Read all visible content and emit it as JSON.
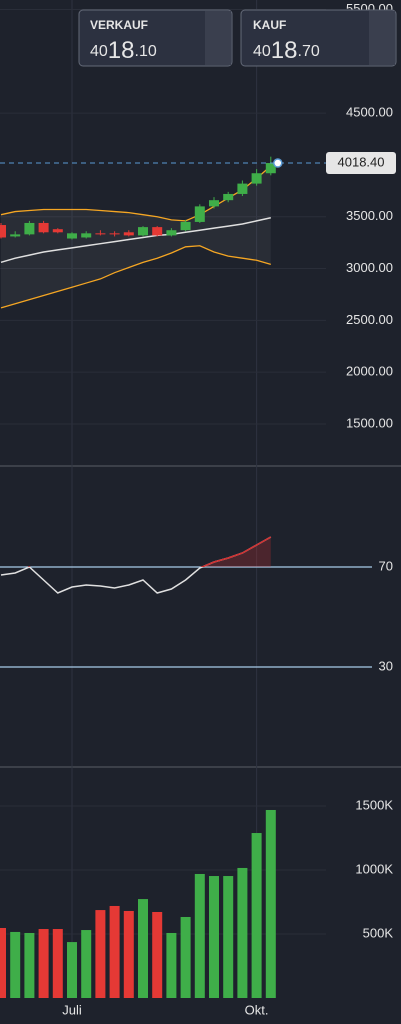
{
  "quotes": [
    {
      "label": "VERKAUF",
      "prefix": "40",
      "main": "18",
      "suffix": ".10"
    },
    {
      "label": "KAUF",
      "prefix": "40",
      "main": "18",
      "suffix": ".70"
    }
  ],
  "chart_data": [
    {
      "type": "candlestick",
      "categories": [
        null,
        null,
        null,
        null,
        null,
        "Juli",
        null,
        null,
        null,
        null,
        null,
        null,
        null,
        null,
        null,
        null,
        null,
        null,
        "Okt.",
        null
      ],
      "open": [
        3420,
        3310,
        3330,
        3440,
        3380,
        3290,
        3300,
        3340,
        3340,
        3350,
        3320,
        3400,
        3320,
        3370,
        3450,
        3600,
        3660,
        3720,
        3820,
        3920
      ],
      "high": [
        3440,
        3360,
        3460,
        3460,
        3390,
        3350,
        3360,
        3370,
        3360,
        3370,
        3410,
        3410,
        3390,
        3470,
        3620,
        3690,
        3740,
        3850,
        3960,
        4080
      ],
      "low": [
        3290,
        3300,
        3320,
        3340,
        3340,
        3280,
        3290,
        3320,
        3310,
        3310,
        3310,
        3310,
        3310,
        3360,
        3440,
        3580,
        3640,
        3700,
        3800,
        3900
      ],
      "close": [
        3300,
        3330,
        3440,
        3350,
        3350,
        3340,
        3340,
        3330,
        3330,
        3320,
        3400,
        3320,
        3370,
        3450,
        3600,
        3660,
        3720,
        3820,
        3920,
        4018.4
      ],
      "upper": [
        3520,
        3550,
        3560,
        3570,
        3570,
        3570,
        3570,
        3560,
        3550,
        3540,
        3520,
        3500,
        3470,
        3460,
        3520,
        3600,
        3680,
        3760,
        3870,
        3990
      ],
      "middle": [
        3060,
        3100,
        3130,
        3160,
        3180,
        3200,
        3220,
        3240,
        3260,
        3280,
        3300,
        3320,
        3330,
        3350,
        3370,
        3390,
        3410,
        3430,
        3460,
        3490
      ],
      "lower": [
        2620,
        2660,
        2700,
        2740,
        2780,
        2820,
        2860,
        2900,
        2960,
        3010,
        3060,
        3100,
        3150,
        3210,
        3220,
        3160,
        3120,
        3100,
        3080,
        3040
      ],
      "up_color": "#3fae49",
      "down_color": "#e53935",
      "band_color": "#f5a623",
      "middle_color": "#e0e0e0",
      "last_price": {
        "value": 4018.4,
        "label": "4018.40"
      },
      "ylim": [
        1104,
        5592
      ],
      "yticks": [
        {
          "value": 5500,
          "label": "5500.00"
        },
        {
          "value": 4500,
          "label": "4500.00"
        },
        {
          "value": 3500,
          "label": "3500.00"
        },
        {
          "value": 3000,
          "label": "3000.00"
        },
        {
          "value": 2500,
          "label": "2500.00"
        },
        {
          "value": 2000,
          "label": "2000.00"
        },
        {
          "value": 1500,
          "label": "1500.00"
        }
      ],
      "grid": true
    },
    {
      "type": "line",
      "values": [
        66.8,
        67.6,
        70,
        64.8,
        59.6,
        62,
        62.8,
        62.4,
        61.6,
        62.8,
        64.8,
        59.6,
        61.2,
        64.8,
        69.6,
        72,
        73.6,
        75.6,
        78.8,
        82
      ],
      "color": "#e0e0e0",
      "overbought_color": "#d32f2f",
      "ylim": [
        -10,
        110
      ],
      "yticks": [
        70,
        30
      ]
    },
    {
      "type": "bar",
      "values": [
        547,
        516,
        508,
        539,
        539,
        437,
        531,
        687,
        719,
        680,
        773,
        672,
        508,
        633,
        969,
        953,
        953,
        1016,
        1289,
        1469
      ],
      "colors": [
        "#e53935",
        "#3fae49",
        "#3fae49",
        "#e53935",
        "#e53935",
        "#3fae49",
        "#3fae49",
        "#e53935",
        "#e53935",
        "#e53935",
        "#3fae49",
        "#e53935",
        "#3fae49",
        "#3fae49",
        "#3fae49",
        "#3fae49",
        "#3fae49",
        "#3fae49",
        "#3fae49",
        "#3fae49"
      ],
      "ylim": [
        0,
        1797
      ],
      "yticks": [
        {
          "value": 1500,
          "label": "1500K"
        },
        {
          "value": 1000,
          "label": "1000K"
        },
        {
          "value": 500,
          "label": "500K"
        }
      ],
      "grid": true
    }
  ]
}
